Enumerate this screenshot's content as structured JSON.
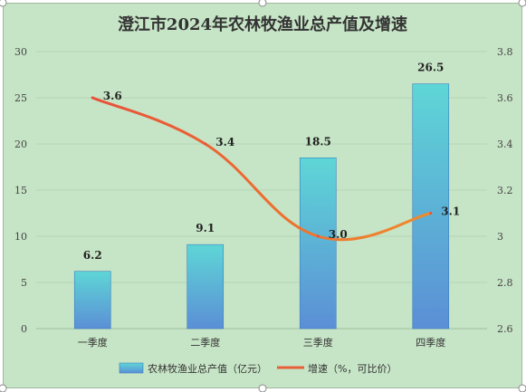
{
  "chart_data": {
    "type": "bar",
    "title": "澄江市2024年农林牧渔业总产值及增速",
    "categories": [
      "一季度",
      "二季度",
      "三季度",
      "四季度"
    ],
    "series": [
      {
        "name": "农林牧渔业总产值（亿元）",
        "type": "bar",
        "axis": "left",
        "values": [
          6.2,
          9.1,
          18.5,
          26.5
        ],
        "labels": [
          "6.2",
          "9.1",
          "18.5",
          "26.5"
        ]
      },
      {
        "name": "增速（%，可比价）",
        "type": "line",
        "axis": "right",
        "values": [
          3.6,
          3.4,
          3.0,
          3.1
        ],
        "labels": [
          "3.6",
          "3.4",
          "3.0",
          "3.1"
        ]
      }
    ],
    "y_left": {
      "lim": [
        0,
        30
      ],
      "ticks": [
        "0",
        "5",
        "10",
        "15",
        "20",
        "25",
        "30"
      ]
    },
    "y_right": {
      "lim": [
        2.6,
        3.8
      ],
      "ticks": [
        "2.6",
        "2.8",
        "3",
        "3.2",
        "3.4",
        "3.6",
        "3.8"
      ]
    },
    "grid": true,
    "legend_position": "bottom",
    "colors": {
      "bar_top": "#5ed6d6",
      "bar_bottom": "#5b8fd6",
      "bar_edge": "#3b7fbf",
      "line": "#e8503a",
      "line_end": "#f08a2a",
      "background": "#c6e4c6"
    }
  }
}
